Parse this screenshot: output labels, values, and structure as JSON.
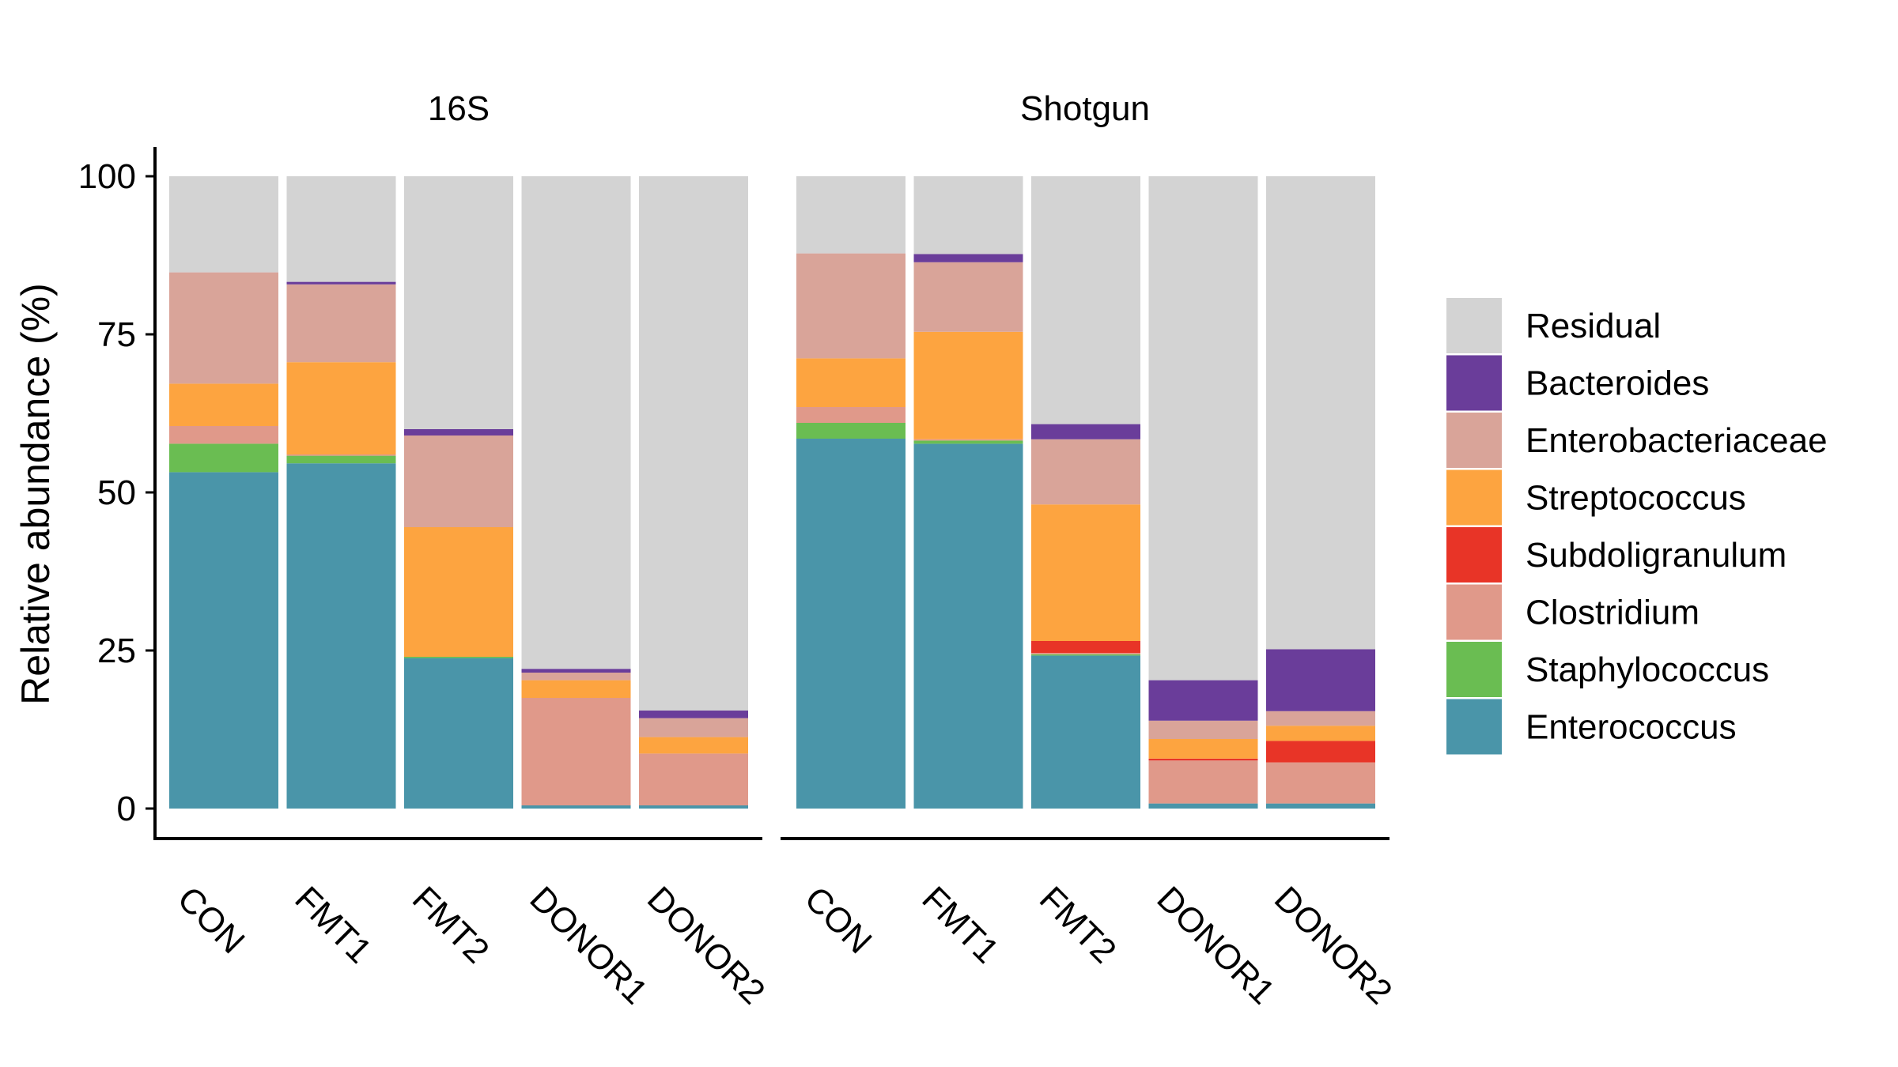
{
  "chart_data": {
    "type": "bar",
    "stacked": true,
    "ylabel": "Relative abundance (%)",
    "xlabel": "",
    "ylim": [
      0,
      100
    ],
    "yticks": [
      0,
      25,
      50,
      75,
      100
    ],
    "grid": false,
    "legend_position": "right",
    "categories": [
      "CON",
      "FMT1",
      "FMT2",
      "DONOR1",
      "DONOR2"
    ],
    "legend": [
      {
        "name": "Residual",
        "color": "#D3D3D3"
      },
      {
        "name": "Bacteroides",
        "color": "#6A3D9A"
      },
      {
        "name": "Enterobacteriaceae",
        "color": "#D9A499"
      },
      {
        "name": "Streptococcus",
        "color": "#FDA440"
      },
      {
        "name": "Subdoligranulum",
        "color": "#E83427"
      },
      {
        "name": "Clostridium",
        "color": "#E0998A"
      },
      {
        "name": "Staphylococcus",
        "color": "#6ABD52"
      },
      {
        "name": "Enterococcus",
        "color": "#4A95A9"
      }
    ],
    "panels": [
      {
        "title": "16S",
        "series": [
          {
            "name": "Enterococcus",
            "values": [
              53.2,
              54.6,
              23.8,
              0.5,
              0.5
            ]
          },
          {
            "name": "Staphylococcus",
            "values": [
              4.5,
              1.2,
              0.2,
              0.0,
              0.0
            ]
          },
          {
            "name": "Clostridium",
            "values": [
              2.8,
              0.2,
              0.0,
              17.0,
              8.2
            ]
          },
          {
            "name": "Subdoligranulum",
            "values": [
              0.0,
              0.0,
              0.0,
              0.0,
              0.0
            ]
          },
          {
            "name": "Streptococcus",
            "values": [
              6.7,
              14.6,
              20.5,
              2.8,
              2.6
            ]
          },
          {
            "name": "Enterobacteriaceae",
            "values": [
              17.6,
              12.3,
              14.5,
              1.2,
              3.0
            ]
          },
          {
            "name": "Bacteroides",
            "values": [
              0.0,
              0.4,
              1.0,
              0.6,
              1.2
            ]
          },
          {
            "name": "Residual",
            "values": [
              15.2,
              16.7,
              40.0,
              77.9,
              84.5
            ]
          }
        ]
      },
      {
        "title": "Shotgun",
        "series": [
          {
            "name": "Enterococcus",
            "values": [
              58.5,
              57.7,
              24.2,
              0.8,
              0.8
            ]
          },
          {
            "name": "Staphylococcus",
            "values": [
              2.5,
              0.5,
              0.2,
              0.0,
              0.0
            ]
          },
          {
            "name": "Clostridium",
            "values": [
              2.5,
              0.2,
              0.2,
              6.8,
              6.5
            ]
          },
          {
            "name": "Subdoligranulum",
            "values": [
              0.0,
              0.0,
              1.9,
              0.3,
              3.4
            ]
          },
          {
            "name": "Streptococcus",
            "values": [
              7.7,
              17.0,
              21.6,
              3.1,
              2.4
            ]
          },
          {
            "name": "Enterobacteriaceae",
            "values": [
              16.6,
              11.0,
              10.3,
              2.9,
              2.3
            ]
          },
          {
            "name": "Bacteroides",
            "values": [
              0.0,
              1.3,
              2.4,
              6.4,
              9.8
            ]
          },
          {
            "name": "Residual",
            "values": [
              12.2,
              12.3,
              39.2,
              79.7,
              74.8
            ]
          }
        ]
      }
    ]
  }
}
